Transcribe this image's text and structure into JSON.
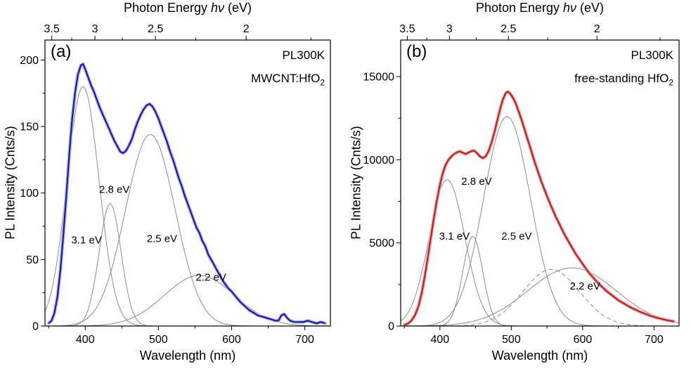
{
  "figure": {
    "background": "#ffffff"
  },
  "chart_data": [
    {
      "type": "line",
      "panel_label": "(a)",
      "legend": {
        "line1": "PL300K",
        "line2_main": "MWCNT:HfO",
        "line2_sub": "2"
      },
      "top_axis": {
        "title_prefix": "Photon Energy ",
        "title_italic": "hν",
        "title_suffix": " (eV)",
        "ticks_eV": [
          3.5,
          3,
          2.5,
          2
        ],
        "minor_ticks_eV": [
          3.25,
          2.75,
          2.25,
          1.75
        ]
      },
      "xlabel": "Wavelength (nm)",
      "ylabel": "PL Intensity (Cnts/s)",
      "xlim": [
        345,
        735
      ],
      "ylim": [
        0,
        215
      ],
      "x_ticks": [
        400,
        500,
        600,
        700
      ],
      "x_minor_ticks": [
        350,
        450,
        550,
        650
      ],
      "y_ticks": [
        0,
        50,
        100,
        150,
        200
      ],
      "y_minor_ticks": [
        25,
        75,
        125,
        175
      ],
      "colors": {
        "curve": "#1414d2",
        "fit": "#c0c0c0",
        "component": "#8c8c8c",
        "frame": "#000000"
      },
      "curve": {
        "points": [
          [
            350,
            2
          ],
          [
            354,
            4
          ],
          [
            358,
            10
          ],
          [
            362,
            22
          ],
          [
            366,
            42
          ],
          [
            370,
            68
          ],
          [
            374,
            97
          ],
          [
            378,
            128
          ],
          [
            382,
            155
          ],
          [
            386,
            175
          ],
          [
            390,
            189
          ],
          [
            394,
            196
          ],
          [
            397,
            197
          ],
          [
            400,
            193
          ],
          [
            404,
            187
          ],
          [
            408,
            181
          ],
          [
            412,
            176
          ],
          [
            416,
            170
          ],
          [
            420,
            164
          ],
          [
            424,
            159
          ],
          [
            428,
            154
          ],
          [
            432,
            149
          ],
          [
            436,
            144
          ],
          [
            440,
            139
          ],
          [
            444,
            135
          ],
          [
            448,
            131
          ],
          [
            452,
            130
          ],
          [
            456,
            132
          ],
          [
            460,
            136
          ],
          [
            464,
            141
          ],
          [
            468,
            148
          ],
          [
            472,
            154
          ],
          [
            476,
            159
          ],
          [
            480,
            163
          ],
          [
            484,
            166
          ],
          [
            488,
            167
          ],
          [
            492,
            165
          ],
          [
            496,
            161
          ],
          [
            500,
            156
          ],
          [
            504,
            150
          ],
          [
            508,
            144
          ],
          [
            512,
            138
          ],
          [
            516,
            131
          ],
          [
            520,
            125
          ],
          [
            524,
            118
          ],
          [
            528,
            111
          ],
          [
            532,
            105
          ],
          [
            536,
            98
          ],
          [
            540,
            92
          ],
          [
            544,
            86
          ],
          [
            548,
            80
          ],
          [
            552,
            74
          ],
          [
            556,
            70
          ],
          [
            560,
            64
          ],
          [
            564,
            60
          ],
          [
            568,
            54
          ],
          [
            572,
            50
          ],
          [
            576,
            46
          ],
          [
            580,
            42
          ],
          [
            584,
            38
          ],
          [
            588,
            34
          ],
          [
            592,
            31
          ],
          [
            596,
            28
          ],
          [
            600,
            26
          ],
          [
            606,
            22
          ],
          [
            612,
            18
          ],
          [
            618,
            15
          ],
          [
            624,
            12
          ],
          [
            630,
            10
          ],
          [
            636,
            8
          ],
          [
            642,
            7
          ],
          [
            648,
            6
          ],
          [
            654,
            5
          ],
          [
            660,
            4
          ],
          [
            664,
            4
          ],
          [
            668,
            8
          ],
          [
            672,
            9
          ],
          [
            676,
            6
          ],
          [
            680,
            4
          ],
          [
            686,
            3
          ],
          [
            692,
            3
          ],
          [
            698,
            3
          ],
          [
            704,
            4
          ],
          [
            710,
            3
          ],
          [
            716,
            2
          ],
          [
            722,
            3
          ],
          [
            728,
            2
          ]
        ]
      },
      "components": [
        {
          "label": "3.1 eV",
          "center_nm": 397,
          "peak": 180,
          "sigma_nm": 22,
          "style": "solid",
          "label_pos": [
            381,
            62
          ]
        },
        {
          "label": "2.8 eV",
          "center_nm": 434,
          "peak": 92,
          "sigma_nm": 15,
          "style": "solid",
          "label_pos": [
            419,
            100
          ]
        },
        {
          "label": "2.5 eV",
          "center_nm": 489,
          "peak": 144,
          "sigma_nm": 34,
          "style": "solid",
          "label_pos": [
            484,
            63
          ]
        },
        {
          "label": "2.2 eV",
          "center_nm": 556,
          "peak": 38,
          "sigma_nm": 48,
          "style": "solid",
          "label_pos": [
            551,
            34
          ]
        }
      ]
    },
    {
      "type": "line",
      "panel_label": "(b)",
      "legend": {
        "line1": "PL300K",
        "line2_main": "free-standing HfO",
        "line2_sub": "2"
      },
      "top_axis": {
        "title_prefix": "Photon Energy ",
        "title_italic": "hν",
        "title_suffix": " (eV)",
        "ticks_eV": [
          3.5,
          3,
          2.5,
          2
        ],
        "minor_ticks_eV": [
          3.25,
          2.75,
          2.25,
          1.75
        ]
      },
      "xlabel": "Wavelength (nm)",
      "ylabel": "PL Intensity (Cnts/s)",
      "xlim": [
        345,
        735
      ],
      "ylim": [
        0,
        17200
      ],
      "x_ticks": [
        400,
        500,
        600,
        700
      ],
      "x_minor_ticks": [
        350,
        450,
        550,
        650
      ],
      "y_ticks": [
        0,
        5000,
        10000,
        15000
      ],
      "y_minor_ticks": [
        2500,
        7500,
        12500
      ],
      "colors": {
        "curve": "#ea1010",
        "fit": "#c0c0c0",
        "component": "#8c8c8c",
        "frame": "#000000"
      },
      "curve": {
        "points": [
          [
            350,
            60
          ],
          [
            355,
            150
          ],
          [
            360,
            320
          ],
          [
            365,
            650
          ],
          [
            370,
            1200
          ],
          [
            375,
            2100
          ],
          [
            380,
            3300
          ],
          [
            385,
            4700
          ],
          [
            390,
            6100
          ],
          [
            395,
            7400
          ],
          [
            400,
            8500
          ],
          [
            404,
            9200
          ],
          [
            408,
            9700
          ],
          [
            412,
            10000
          ],
          [
            416,
            10200
          ],
          [
            420,
            10350
          ],
          [
            424,
            10450
          ],
          [
            428,
            10500
          ],
          [
            432,
            10420
          ],
          [
            436,
            10350
          ],
          [
            440,
            10430
          ],
          [
            444,
            10520
          ],
          [
            448,
            10550
          ],
          [
            452,
            10400
          ],
          [
            456,
            10200
          ],
          [
            460,
            10100
          ],
          [
            464,
            10200
          ],
          [
            468,
            10500
          ],
          [
            472,
            11000
          ],
          [
            476,
            11600
          ],
          [
            480,
            12300
          ],
          [
            484,
            13000
          ],
          [
            488,
            13600
          ],
          [
            492,
            14000
          ],
          [
            495,
            14100
          ],
          [
            498,
            14000
          ],
          [
            502,
            13750
          ],
          [
            506,
            13400
          ],
          [
            510,
            12950
          ],
          [
            514,
            12450
          ],
          [
            518,
            11900
          ],
          [
            522,
            11350
          ],
          [
            526,
            10800
          ],
          [
            530,
            10250
          ],
          [
            534,
            9700
          ],
          [
            538,
            9200
          ],
          [
            542,
            8700
          ],
          [
            546,
            8250
          ],
          [
            550,
            7800
          ],
          [
            554,
            7400
          ],
          [
            558,
            7000
          ],
          [
            562,
            6600
          ],
          [
            566,
            6250
          ],
          [
            570,
            5900
          ],
          [
            574,
            5550
          ],
          [
            578,
            5250
          ],
          [
            582,
            4950
          ],
          [
            586,
            4650
          ],
          [
            590,
            4350
          ],
          [
            594,
            4100
          ],
          [
            598,
            3850
          ],
          [
            602,
            3600
          ],
          [
            608,
            3250
          ],
          [
            614,
            2950
          ],
          [
            620,
            2650
          ],
          [
            626,
            2400
          ],
          [
            632,
            2150
          ],
          [
            638,
            1950
          ],
          [
            644,
            1750
          ],
          [
            650,
            1550
          ],
          [
            656,
            1400
          ],
          [
            662,
            1250
          ],
          [
            668,
            1100
          ],
          [
            674,
            980
          ],
          [
            680,
            860
          ],
          [
            686,
            760
          ],
          [
            692,
            660
          ],
          [
            698,
            580
          ],
          [
            704,
            500
          ],
          [
            710,
            430
          ],
          [
            716,
            370
          ],
          [
            722,
            320
          ],
          [
            728,
            270
          ]
        ]
      },
      "components": [
        {
          "label": "3.1 eV",
          "center_nm": 410,
          "peak": 8800,
          "sigma_nm": 25,
          "style": "solid",
          "label_pos": [
            399,
            5200
          ]
        },
        {
          "label": "2.8 eV",
          "center_nm": 446,
          "peak": 5400,
          "sigma_nm": 14,
          "style": "solid",
          "label_pos": [
            430,
            8500
          ]
        },
        {
          "label": "2.5 eV",
          "center_nm": 494,
          "peak": 12600,
          "sigma_nm": 33,
          "style": "solid",
          "label_pos": [
            486,
            5200
          ]
        },
        {
          "label": "2.2 eV",
          "center_nm": 585,
          "peak": 3500,
          "sigma_nm": 62,
          "style": "solid",
          "label_pos": [
            582,
            2200
          ]
        },
        {
          "label": "",
          "center_nm": 556,
          "peak": 3400,
          "sigma_nm": 40,
          "style": "dashed",
          "label_pos": null
        }
      ]
    }
  ]
}
